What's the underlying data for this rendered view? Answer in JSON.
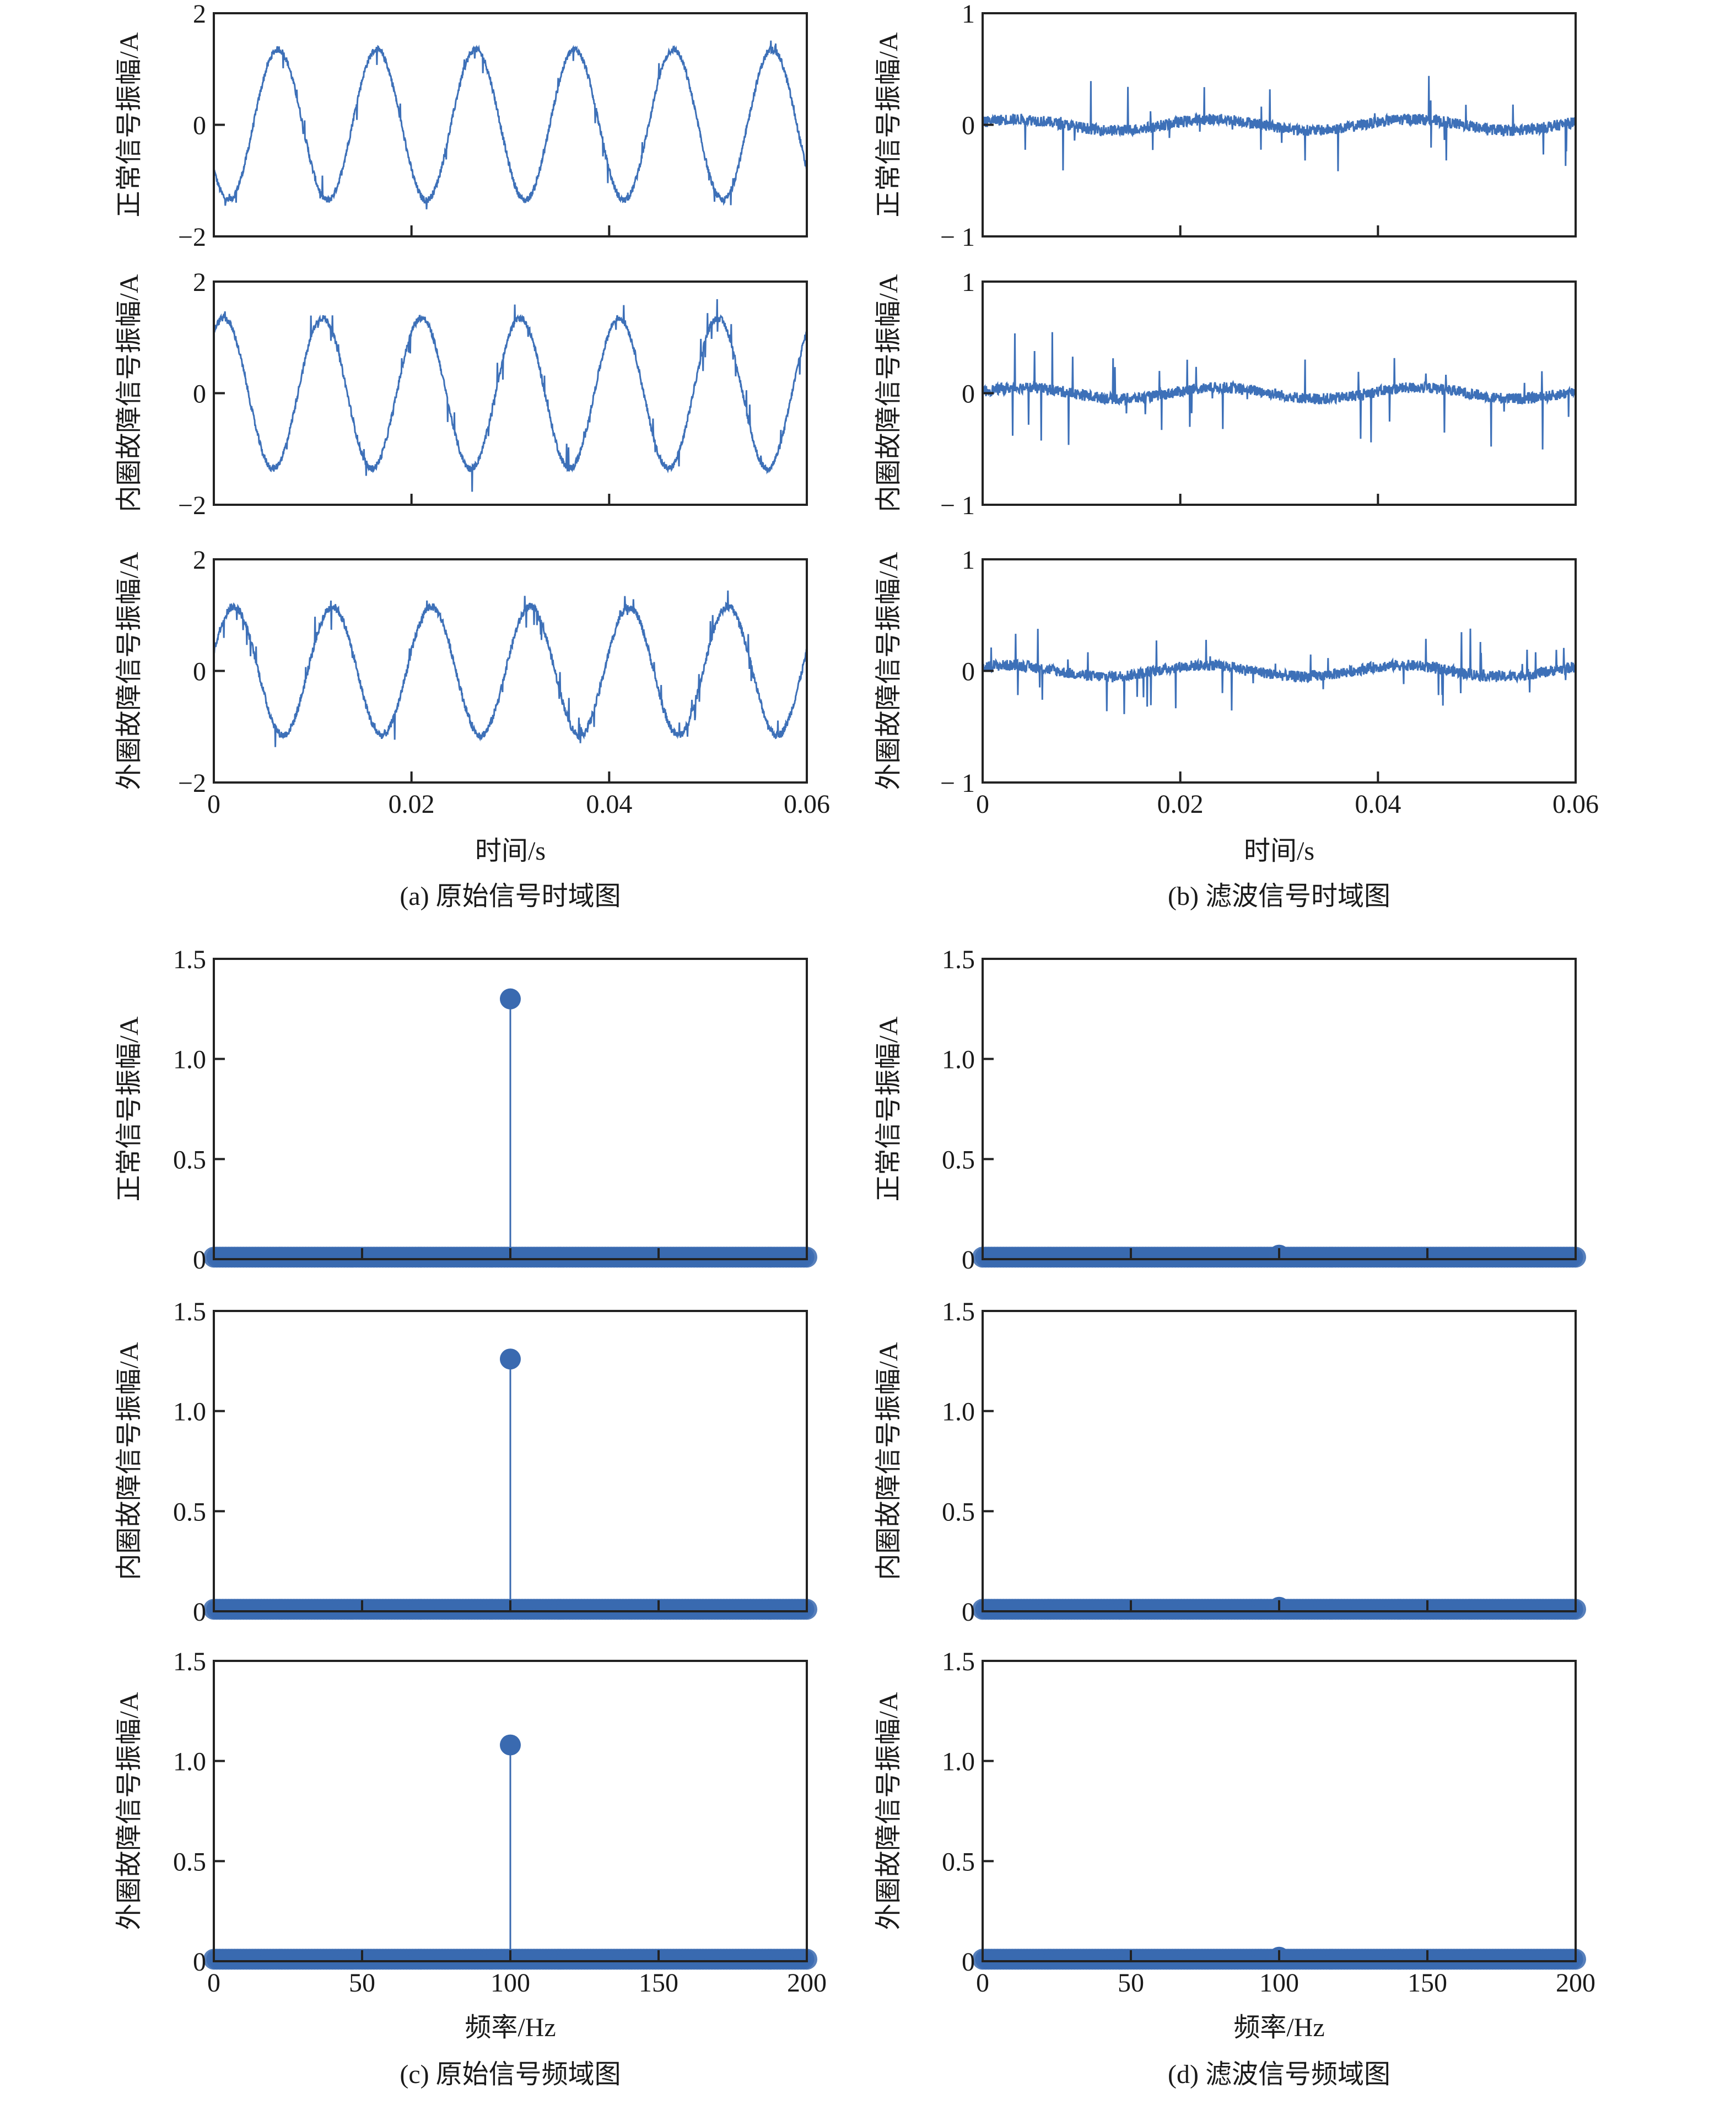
{
  "chart_data": [
    {
      "id": "a",
      "type": "line",
      "caption": "(a) 原始信号时域图",
      "xlabel": "时间/s",
      "xlim": [
        0,
        0.06
      ],
      "xticks": [
        0,
        0.02,
        0.04,
        0.06
      ],
      "xtick_labels": [
        "0",
        "0.02",
        "0.04",
        "0.06"
      ],
      "ylim": [
        -2,
        2
      ],
      "yticks": [
        2,
        0,
        -2
      ],
      "ytick_labels": [
        "2",
        "0",
        "−2"
      ],
      "color": "#3d70b8",
      "panels": [
        {
          "ylabel": "正常信号振幅/A",
          "signal": {
            "amplitude": 1.35,
            "freq_hz": 100,
            "phase_rad": -2.51,
            "noise": 0.06,
            "spike_rate": 0.02,
            "spike_size": 0.25
          }
        },
        {
          "ylabel": "内圈故障信号振幅/A",
          "signal": {
            "amplitude": 1.35,
            "freq_hz": 100,
            "phase_rad": -5.34,
            "noise": 0.06,
            "spike_rate": 0.03,
            "spike_size": 0.3
          }
        },
        {
          "ylabel": "外圈故障信号振幅/A",
          "signal": {
            "amplitude": 1.15,
            "freq_hz": 100,
            "phase_rad": 0.31,
            "noise": 0.07,
            "spike_rate": 0.03,
            "spike_size": 0.3
          }
        }
      ]
    },
    {
      "id": "b",
      "type": "line",
      "caption": "(b) 滤波信号时域图",
      "xlabel": "时间/s",
      "xlim": [
        0,
        0.06
      ],
      "xticks": [
        0,
        0.02,
        0.04,
        0.06
      ],
      "xtick_labels": [
        "0",
        "0.02",
        "0.04",
        "0.06"
      ],
      "ylim": [
        -1,
        1
      ],
      "yticks": [
        1,
        0,
        -1
      ],
      "ytick_labels": [
        "1",
        "0",
        "− 1"
      ],
      "color": "#3d70b8",
      "panels": [
        {
          "ylabel": "正常信号振幅/A",
          "signal": {
            "amplitude": 0.05,
            "freq_hz": 50,
            "phase_rad": 0.5,
            "noise": 0.05,
            "spike_rate": 0.02,
            "spike_size": 0.3
          }
        },
        {
          "ylabel": "内圈故障信号振幅/A",
          "signal": {
            "amplitude": 0.05,
            "freq_hz": 50,
            "phase_rad": 0.3,
            "noise": 0.05,
            "spike_rate": 0.03,
            "spike_size": 0.35
          }
        },
        {
          "ylabel": "外圈故障信号振幅/A",
          "signal": {
            "amplitude": 0.05,
            "freq_hz": 50,
            "phase_rad": 0.8,
            "noise": 0.05,
            "spike_rate": 0.025,
            "spike_size": 0.3
          }
        }
      ]
    },
    {
      "id": "c",
      "type": "stem",
      "caption": "(c) 原始信号频域图",
      "xlabel": "频率/Hz",
      "xlim": [
        0,
        200
      ],
      "xticks": [
        0,
        50,
        100,
        150,
        200
      ],
      "xtick_labels": [
        "0",
        "50",
        "100",
        "150",
        "200"
      ],
      "ylim": [
        0,
        1.5
      ],
      "yticks": [
        1.5,
        1.0,
        0.5,
        0
      ],
      "ytick_labels": [
        "1.5",
        "1.0",
        "0.5",
        "0"
      ],
      "color": "#3a6ab0",
      "panels": [
        {
          "ylabel": "正常信号振幅/A",
          "peak": {
            "freq_hz": 100,
            "amplitude": 1.3
          },
          "baseline": 0.01
        },
        {
          "ylabel": "内圈故障信号振幅/A",
          "peak": {
            "freq_hz": 100,
            "amplitude": 1.26
          },
          "baseline": 0.01
        },
        {
          "ylabel": "外圈故障信号振幅/A",
          "peak": {
            "freq_hz": 100,
            "amplitude": 1.08
          },
          "baseline": 0.01
        }
      ]
    },
    {
      "id": "d",
      "type": "stem",
      "caption": "(d) 滤波信号频域图",
      "xlabel": "频率/Hz",
      "xlim": [
        0,
        200
      ],
      "xticks": [
        0,
        50,
        100,
        150,
        200
      ],
      "xtick_labels": [
        "0",
        "50",
        "100",
        "150",
        "200"
      ],
      "ylim": [
        0,
        1.5
      ],
      "yticks": [
        1.5,
        1.0,
        0.5,
        0
      ],
      "ytick_labels": [
        "1.5",
        "1.0",
        "0.5",
        "0"
      ],
      "color": "#3a6ab0",
      "panels": [
        {
          "ylabel": "正常信号振幅/A",
          "peak": {
            "freq_hz": 100,
            "amplitude": 0.02
          },
          "baseline": 0.01
        },
        {
          "ylabel": "内圈故障信号振幅/A",
          "peak": {
            "freq_hz": 100,
            "amplitude": 0.02
          },
          "baseline": 0.01
        },
        {
          "ylabel": "外圈故障信号振幅/A",
          "peak": {
            "freq_hz": 100,
            "amplitude": 0.02
          },
          "baseline": 0.01
        }
      ]
    }
  ]
}
